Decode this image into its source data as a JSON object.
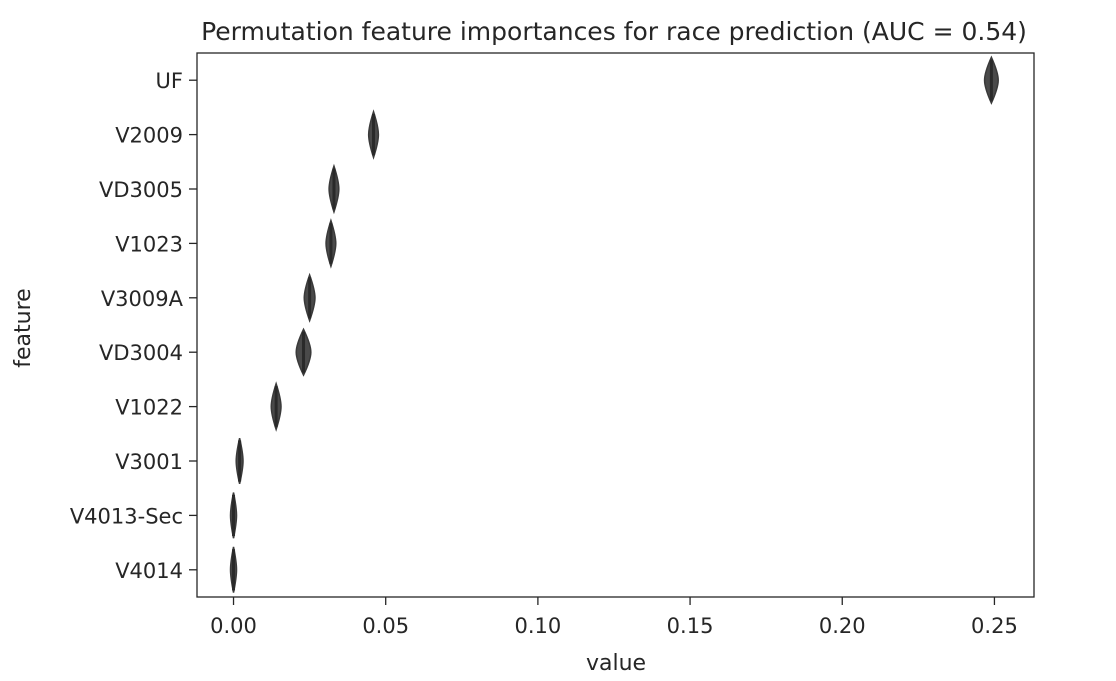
{
  "chart_data": {
    "type": "violin",
    "title": "Permutation feature importances for race prediction (AUC = 0.54)",
    "xlabel": "value",
    "ylabel": "feature",
    "xlim": [
      -0.012,
      0.263
    ],
    "xticks": [
      0.0,
      0.05,
      0.1,
      0.15,
      0.2,
      0.25
    ],
    "xtick_labels": [
      "0.00",
      "0.05",
      "0.10",
      "0.15",
      "0.20",
      "0.25"
    ],
    "grid": false,
    "legend": "none",
    "colors": {
      "violin_fill": "#4a4a4a",
      "axis": "#262626",
      "text": "#262626"
    },
    "features": [
      {
        "name": "UF",
        "value": 0.249,
        "spread": 0.0014
      },
      {
        "name": "V2009",
        "value": 0.046,
        "spread": 0.001
      },
      {
        "name": "VD3005",
        "value": 0.033,
        "spread": 0.001
      },
      {
        "name": "V1023",
        "value": 0.032,
        "spread": 0.001
      },
      {
        "name": "V3009A",
        "value": 0.025,
        "spread": 0.0011
      },
      {
        "name": "VD3004",
        "value": 0.023,
        "spread": 0.0015
      },
      {
        "name": "V1022",
        "value": 0.014,
        "spread": 0.001
      },
      {
        "name": "V3001",
        "value": 0.002,
        "spread": 0.0007
      },
      {
        "name": "V4013-Sec",
        "value": 0.0,
        "spread": 0.0006
      },
      {
        "name": "V4014",
        "value": 0.0,
        "spread": 0.0006
      }
    ]
  }
}
